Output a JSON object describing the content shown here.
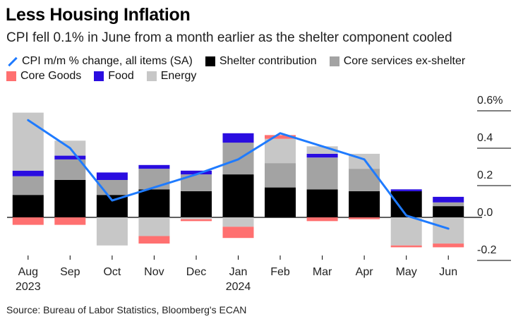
{
  "header": {
    "title": "Less Housing Inflation",
    "subtitle": "CPI fell 0.1% in June from a month earlier as the shelter component cooled"
  },
  "legend": {
    "line": "CPI m/m % change, all items (SA)",
    "shelter": "Shelter contribution",
    "core_services": "Core services ex-shelter",
    "core_goods": "Core Goods",
    "food": "Food",
    "energy": "Energy"
  },
  "colors": {
    "line": "#1f7bff",
    "shelter": "#000000",
    "core_services": "#a3a3a3",
    "core_goods": "#ff7070",
    "food": "#2a0de0",
    "energy": "#c7c7c7"
  },
  "source": "Source: Bureau of Labor Statistics, Bloomberg's ECAN",
  "chart_data": {
    "type": "bar",
    "stacked": true,
    "title": "Less Housing Inflation",
    "subtitle": "CPI fell 0.1% in June from a month earlier as the shelter component cooled",
    "categories": [
      "Aug",
      "Sep",
      "Oct",
      "Nov",
      "Dec",
      "Jan",
      "Feb",
      "Mar",
      "Apr",
      "May",
      "Jun"
    ],
    "category_sublabels": [
      "2023",
      "",
      "",
      "",
      "",
      "2024",
      "",
      "",
      "",
      "",
      ""
    ],
    "ylim": [
      -0.25,
      0.65
    ],
    "yticks": [
      -0.2,
      0.0,
      0.2,
      0.4,
      0.6
    ],
    "ytick_labels": [
      "-0.2",
      "0.0",
      "0.2",
      "0.4",
      "0.6%"
    ],
    "y_axis_position": "right",
    "grid": false,
    "legend_position": "top",
    "series": [
      {
        "name": "Shelter contribution",
        "key": "shelter",
        "values": [
          0.12,
          0.2,
          0.12,
          0.15,
          0.14,
          0.23,
          0.16,
          0.15,
          0.14,
          0.14,
          0.06
        ]
      },
      {
        "name": "Core services ex-shelter",
        "key": "core_services",
        "values": [
          0.1,
          0.11,
          0.08,
          0.11,
          0.09,
          0.17,
          0.13,
          0.17,
          0.12,
          0.0,
          0.02
        ]
      },
      {
        "name": "Core Goods",
        "key": "core_goods",
        "values": [
          -0.04,
          -0.04,
          0.0,
          -0.04,
          -0.01,
          -0.06,
          0.02,
          -0.02,
          -0.01,
          -0.01,
          -0.02
        ]
      },
      {
        "name": "Food",
        "key": "food",
        "values": [
          0.03,
          0.02,
          0.04,
          0.02,
          0.02,
          0.05,
          0.0,
          0.02,
          0.0,
          0.01,
          0.03
        ]
      },
      {
        "name": "Energy",
        "key": "energy",
        "values": [
          0.31,
          0.08,
          -0.15,
          -0.1,
          -0.01,
          -0.05,
          0.13,
          0.04,
          0.08,
          -0.15,
          -0.14
        ]
      }
    ],
    "line": {
      "name": "CPI m/m % change, all items (SA)",
      "values": [
        0.52,
        0.37,
        0.09,
        0.16,
        0.23,
        0.31,
        0.45,
        0.38,
        0.31,
        0.01,
        -0.06
      ]
    }
  }
}
